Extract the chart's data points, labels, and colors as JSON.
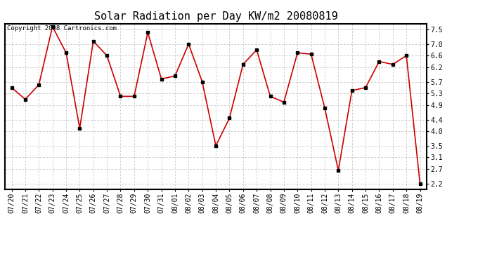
{
  "title": "Solar Radiation per Day KW/m2 20080819",
  "copyright": "Copyright 2008 Cartronics.com",
  "dates": [
    "07/20",
    "07/21",
    "07/22",
    "07/23",
    "07/24",
    "07/25",
    "07/26",
    "07/27",
    "07/28",
    "07/29",
    "07/30",
    "07/31",
    "08/01",
    "08/02",
    "08/03",
    "08/04",
    "08/05",
    "08/06",
    "08/07",
    "08/08",
    "08/09",
    "08/10",
    "08/11",
    "08/12",
    "08/13",
    "08/14",
    "08/15",
    "08/16",
    "08/17",
    "08/18",
    "08/19"
  ],
  "values": [
    5.5,
    5.1,
    5.6,
    7.6,
    6.7,
    4.1,
    7.1,
    6.6,
    5.2,
    5.2,
    7.4,
    5.8,
    5.9,
    7.0,
    5.7,
    3.5,
    4.45,
    6.3,
    6.8,
    5.2,
    5.0,
    6.7,
    6.65,
    4.8,
    2.65,
    5.4,
    5.5,
    6.4,
    6.3,
    6.6,
    2.2
  ],
  "line_color": "#cc0000",
  "marker": "s",
  "marker_color": "#000000",
  "marker_size": 2.5,
  "ylim": [
    2.0,
    7.7
  ],
  "yticks": [
    2.2,
    2.7,
    3.1,
    3.5,
    4.0,
    4.4,
    4.9,
    5.3,
    5.7,
    6.2,
    6.6,
    7.0,
    7.5
  ],
  "background_color": "#ffffff",
  "plot_bg_color": "#ffffff",
  "grid_color": "#bbbbbb",
  "title_fontsize": 11,
  "tick_fontsize": 7,
  "copyright_fontsize": 6.5
}
